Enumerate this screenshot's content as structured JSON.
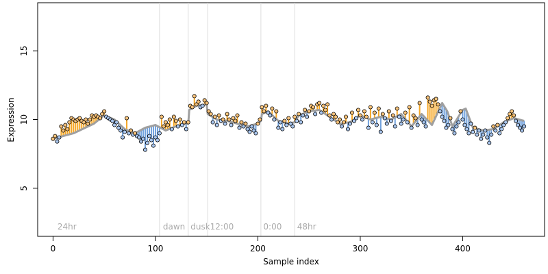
{
  "chart_data": {
    "type": "scatter",
    "xlabel": "Sample index",
    "ylabel": "Expression",
    "xlim": [
      -15,
      480
    ],
    "ylim": [
      1.5,
      18.5
    ],
    "x_ticks": [
      0,
      100,
      200,
      300,
      400
    ],
    "y_ticks": [
      5,
      10,
      15
    ],
    "grid": false,
    "period_lines": [
      104,
      132,
      151,
      203,
      236
    ],
    "period_labels": [
      {
        "x": 3,
        "text": "24hr"
      },
      {
        "x": 106,
        "text": "dawn"
      },
      {
        "x": 133,
        "text": "dusk"
      },
      {
        "x": 152,
        "text": "12:00"
      },
      {
        "x": 204,
        "text": "0:00"
      },
      {
        "x": 237,
        "text": "48hr"
      }
    ],
    "colors": {
      "fitted_line": "#a0a0a0",
      "above_fit": "#f5a623",
      "below_fit": "#6fa0dc",
      "period_line": "#dddddd",
      "period_label": "#aaaaaa"
    },
    "series": [
      {
        "type": "line",
        "x": [
          0,
          20,
          40,
          50,
          60,
          70,
          80,
          90,
          100,
          110,
          120,
          130,
          132,
          133,
          140,
          150,
          151,
          160,
          170,
          180,
          190,
          200,
          203,
          204,
          210,
          220,
          230,
          236,
          240,
          250,
          260,
          270,
          280,
          290,
          300,
          310,
          320,
          330,
          340,
          350,
          360,
          370,
          380,
          385,
          390,
          400,
          403,
          410,
          420,
          430,
          440,
          450,
          460
        ],
        "y": [
          8.6,
          9.0,
          9.7,
          10.3,
          10.0,
          9.3,
          9.0,
          9.4,
          9.6,
          9.2,
          9.5,
          9.7,
          9.7,
          10.7,
          11.0,
          11.1,
          10.4,
          10.0,
          9.9,
          9.7,
          9.5,
          9.7,
          9.9,
          10.4,
          10.6,
          9.9,
          9.7,
          9.8,
          10.3,
          10.6,
          10.7,
          10.2,
          9.7,
          9.8,
          10.3,
          10.0,
          10.2,
          10.0,
          10.4,
          9.5,
          10.4,
          9.6,
          11.2,
          10.6,
          9.5,
          10.7,
          10.8,
          9.4,
          9.2,
          9.3,
          9.8,
          10.1,
          9.9
        ]
      },
      {
        "type": "scatter",
        "x": [
          0,
          2,
          4,
          6,
          8,
          10,
          12,
          14,
          16,
          18,
          20,
          22,
          24,
          26,
          28,
          30,
          32,
          34,
          36,
          38,
          40,
          42,
          44,
          46,
          48,
          50,
          52,
          54,
          56,
          58,
          60,
          62,
          64,
          66,
          68,
          70,
          72,
          74,
          76,
          78,
          80,
          82,
          84,
          86,
          88,
          90,
          92,
          94,
          96,
          98,
          100,
          102,
          104,
          106,
          108,
          110,
          112,
          114,
          116,
          118,
          120,
          122,
          124,
          126,
          128,
          130,
          132,
          134,
          136,
          138,
          140,
          142,
          144,
          146,
          148,
          150,
          152,
          154,
          156,
          158,
          160,
          162,
          164,
          166,
          168,
          170,
          172,
          174,
          176,
          178,
          180,
          182,
          184,
          186,
          188,
          190,
          192,
          194,
          196,
          198,
          200,
          202,
          204,
          206,
          208,
          210,
          212,
          214,
          216,
          218,
          220,
          222,
          224,
          226,
          228,
          230,
          232,
          234,
          236,
          238,
          240,
          242,
          244,
          246,
          248,
          250,
          252,
          254,
          256,
          258,
          260,
          262,
          264,
          266,
          268,
          270,
          272,
          274,
          276,
          278,
          280,
          282,
          284,
          286,
          288,
          290,
          292,
          294,
          296,
          298,
          300,
          302,
          304,
          306,
          308,
          310,
          312,
          314,
          316,
          318,
          320,
          322,
          324,
          326,
          328,
          330,
          332,
          334,
          336,
          338,
          340,
          342,
          344,
          346,
          348,
          350,
          352,
          354,
          356,
          358,
          360,
          362,
          364,
          366,
          368,
          370,
          372,
          374,
          376,
          378,
          380,
          382,
          384,
          386,
          388,
          390,
          392,
          394,
          396,
          398,
          400,
          402,
          404,
          406,
          408,
          410,
          412,
          414,
          416,
          418,
          420,
          422,
          424,
          426,
          428,
          430,
          432,
          434,
          436,
          438,
          440,
          442,
          444,
          446,
          448,
          450,
          452,
          454,
          456,
          458,
          460
        ],
        "y": [
          8.6,
          8.8,
          8.4,
          8.7,
          9.5,
          9.2,
          9.6,
          9.3,
          9.8,
          10.1,
          10.0,
          9.9,
          10.0,
          10.1,
          9.9,
          9.8,
          10.0,
          9.7,
          10.0,
          10.3,
          10.2,
          10.3,
          10.2,
          10.1,
          10.4,
          10.6,
          10.2,
          10.1,
          10.0,
          9.9,
          9.6,
          9.8,
          9.4,
          9.2,
          8.7,
          9.1,
          10.1,
          9.0,
          9.2,
          8.9,
          9.0,
          8.8,
          8.7,
          8.4,
          8.6,
          7.8,
          8.3,
          8.8,
          8.5,
          8.1,
          8.7,
          8.5,
          9.0,
          10.2,
          9.5,
          9.8,
          9.6,
          10.0,
          9.3,
          10.2,
          9.9,
          9.5,
          10.0,
          9.6,
          9.8,
          9.3,
          9.8,
          11.0,
          10.9,
          11.7,
          11.1,
          11.3,
          10.9,
          11.0,
          11.4,
          11.2,
          10.6,
          10.4,
          9.8,
          10.2,
          9.6,
          10.3,
          9.9,
          10.0,
          9.7,
          10.4,
          10.0,
          9.6,
          10.1,
          9.9,
          10.3,
          9.4,
          9.8,
          9.5,
          9.7,
          9.3,
          9.1,
          9.5,
          9.2,
          9.0,
          9.7,
          10.0,
          10.9,
          10.6,
          11.0,
          10.5,
          10.3,
          10.8,
          10.0,
          10.6,
          9.4,
          9.8,
          9.3,
          9.9,
          9.6,
          10.1,
          9.7,
          9.5,
          10.2,
          9.9,
          10.4,
          9.8,
          10.3,
          10.7,
          10.2,
          10.6,
          11.0,
          10.9,
          10.4,
          11.1,
          11.2,
          10.5,
          11.0,
          10.7,
          11.1,
          10.3,
          10.0,
          10.4,
          10.2,
          9.8,
          10.0,
          9.5,
          9.8,
          10.2,
          9.3,
          9.7,
          10.5,
          9.9,
          10.1,
          10.7,
          10.3,
          10.0,
          10.6,
          10.2,
          9.4,
          10.9,
          9.8,
          10.5,
          9.6,
          10.8,
          9.1,
          10.4,
          10.1,
          9.7,
          10.6,
          9.9,
          10.3,
          9.5,
          10.8,
          10.2,
          9.7,
          10.0,
          10.5,
          9.8,
          10.9,
          9.4,
          10.3,
          10.1,
          9.6,
          11.2,
          10.0,
          9.8,
          9.5,
          11.6,
          11.3,
          11.0,
          11.4,
          11.5,
          11.1,
          10.6,
          10.2,
          9.9,
          9.4,
          9.6,
          10.1,
          9.3,
          9.0,
          9.5,
          9.8,
          10.6,
          10.0,
          9.6,
          9.3,
          9.0,
          9.7,
          9.1,
          9.4,
          8.9,
          9.2,
          8.6,
          8.9,
          9.2,
          8.7,
          8.3,
          8.9,
          9.5,
          9.2,
          9.6,
          9.0,
          9.3,
          9.6,
          9.8,
          10.1,
          10.4,
          10.6,
          10.3,
          9.9,
          9.6,
          9.4,
          9.2,
          9.5
        ]
      }
    ]
  }
}
